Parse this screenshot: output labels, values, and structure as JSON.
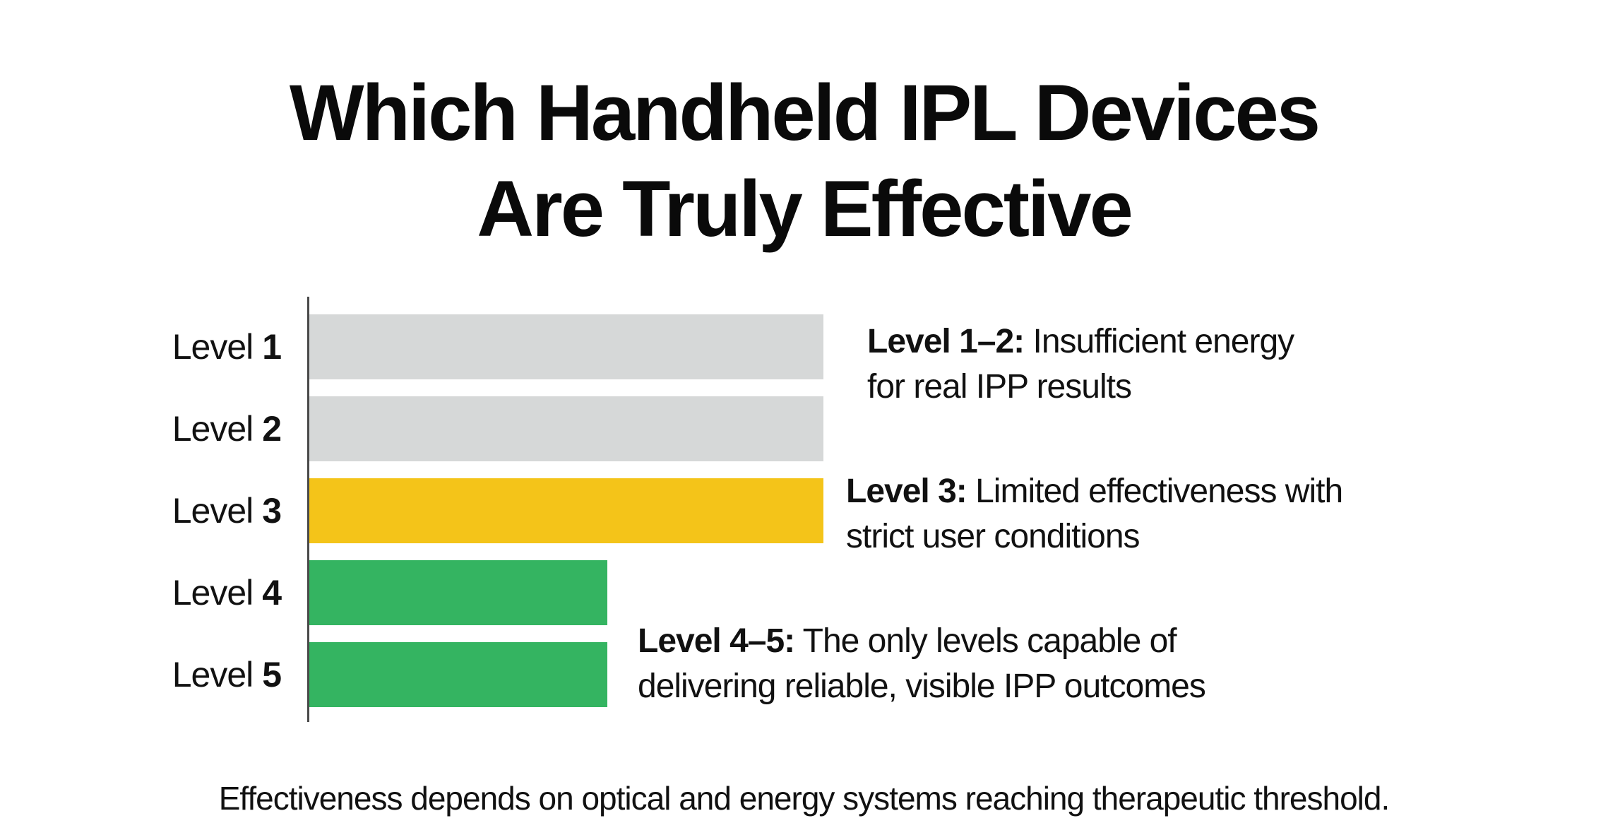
{
  "title": {
    "line1": "Which Handheld IPL Devices",
    "line2": "Are Truly Effective"
  },
  "chart_data": {
    "type": "bar",
    "orientation": "horizontal",
    "title": "Which Handheld IPL Devices Are Truly Effective",
    "categories": [
      "Level 1",
      "Level 2",
      "Level 3",
      "Level 4",
      "Level 5"
    ],
    "values": [
      100,
      100,
      100,
      58,
      58
    ],
    "colors": [
      "#d6d8d8",
      "#d6d8d8",
      "#f4c419",
      "#34b461",
      "#34b461"
    ],
    "xlabel": "",
    "ylabel": "",
    "grid": false,
    "axis_ticks_shown": false,
    "annotations": [
      {
        "range": "Level 1–2",
        "label": "Level 1–2:",
        "text": "Insufficient energy for real IPP results"
      },
      {
        "range": "Level 3",
        "label": "Level 3:",
        "text": "Limited effectiveness with strict user conditions"
      },
      {
        "range": "Level 4–5",
        "label": "Level 4–5:",
        "text": "The only levels capable of delivering reliable, visible IPP outcomes"
      }
    ],
    "footnote": "Effectiveness depends on optical and energy systems reaching therapeutic threshold."
  },
  "rows": [
    {
      "prefix": "Level ",
      "num": "1",
      "color": "#d6d8d8"
    },
    {
      "prefix": "Level ",
      "num": "2",
      "color": "#d6d8d8"
    },
    {
      "prefix": "Level ",
      "num": "3",
      "color": "#f4c419"
    },
    {
      "prefix": "Level ",
      "num": "4",
      "color": "#34b461"
    },
    {
      "prefix": "Level ",
      "num": "5",
      "color": "#34b461"
    }
  ],
  "notes": {
    "n12": {
      "bold": "Level 1–2:",
      "line1": " Insufficient energy",
      "line2": "for real IPP results"
    },
    "n3": {
      "bold": "Level 3:",
      "line1": " Limited effectiveness with",
      "line2": "strict user conditions"
    },
    "n45": {
      "bold": "Level 4–5:",
      "line1": " The only levels capable of",
      "line2": "delivering reliable, visible IPP outcomes"
    }
  },
  "footer": "Effectiveness depends on optical and energy systems reaching therapeutic threshold."
}
